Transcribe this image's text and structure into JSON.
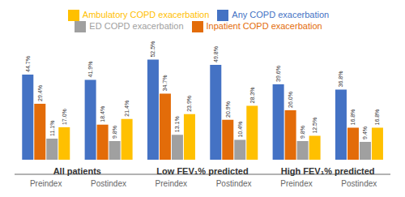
{
  "chart_data": {
    "type": "bar",
    "categories": [
      "Preindex",
      "Postindex",
      "Preindex",
      "Postindex",
      "Preindex",
      "Postindex"
    ],
    "group_labels": [
      "All patients",
      "Low FEV₁% predicted",
      "High FEV₁% predicted"
    ],
    "series": [
      {
        "name": "Any COPD exacerbation",
        "color": "#4472C4",
        "values": [
          44.7,
          41.9,
          52.5,
          49.8,
          39.6,
          36.8
        ],
        "value_labels": [
          "44.7%",
          "41.9%",
          "52.5%",
          "49.8%",
          "39.6%",
          "36.8%"
        ]
      },
      {
        "name": "Inpatient COPD exacerbation",
        "color": "#E36C09",
        "values": [
          29.4,
          18.4,
          34.7,
          20.9,
          26.0,
          16.8
        ],
        "value_labels": [
          "29.4%",
          "18.4%",
          "34.7%",
          "20.9%",
          "26.0%",
          "16.8%"
        ]
      },
      {
        "name": "ED COPD exacerbation",
        "color": "#A0A0A0",
        "values": [
          11.1,
          9.8,
          13.1,
          10.4,
          9.8,
          9.4
        ],
        "value_labels": [
          "11.1%",
          "9.8%",
          "13.1%",
          "10.4%",
          "9.8%",
          "9.4%"
        ]
      },
      {
        "name": "Ambulatory COPD exacerbation",
        "color": "#FFC000",
        "values": [
          17.0,
          21.4,
          23.9,
          28.3,
          12.5,
          16.8
        ],
        "value_labels": [
          "17.0%",
          "21.4%",
          "23.9%",
          "28.3%",
          "12.5%",
          "16.8%"
        ]
      }
    ],
    "ylim": [
      0,
      65
    ],
    "grid": false,
    "legend": "top",
    "data_labels": true,
    "tick_labels": "x"
  }
}
